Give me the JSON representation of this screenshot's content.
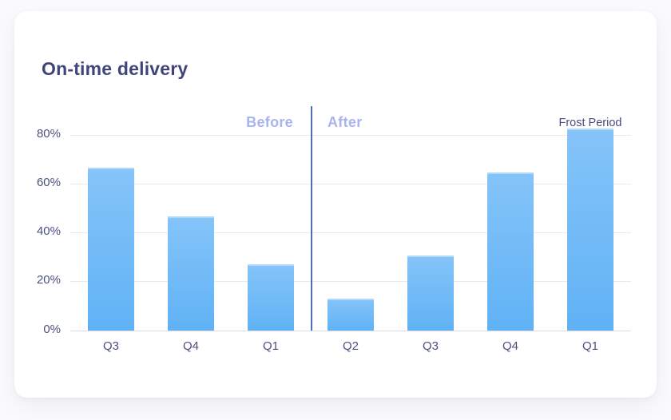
{
  "chart_data": {
    "type": "bar",
    "title": "On-time delivery",
    "categories": [
      "Q3",
      "Q4",
      "Q1",
      "Q2",
      "Q3",
      "Q4",
      "Q1"
    ],
    "values": [
      66.5,
      46.5,
      27,
      13,
      30.5,
      64.5,
      82.5
    ],
    "unit": "%",
    "xlabel": "",
    "ylabel": "",
    "ylim": [
      0,
      90
    ],
    "yticks": [
      0,
      20,
      40,
      60,
      80
    ],
    "ytick_labels": [
      "0%",
      "20%",
      "40%",
      "60%",
      "80%"
    ],
    "grid": "horizontal",
    "legend": "none",
    "sections": [
      {
        "label": "Before",
        "categories": [
          "Q3",
          "Q4",
          "Q1"
        ],
        "values": [
          66.5,
          46.5,
          27
        ]
      },
      {
        "label": "After",
        "categories": [
          "Q2",
          "Q3",
          "Q4",
          "Q1"
        ],
        "values": [
          13,
          30.5,
          64.5,
          82.5
        ]
      }
    ],
    "annotations": {
      "before_label": "Before",
      "after_label": "After",
      "frost_label": "Frost Period",
      "frost_target_category_index": 6,
      "divider_after_index": 2
    },
    "colors": {
      "bar_gradient_top": "#85c4f9",
      "bar_gradient_bottom": "#60b2f5",
      "divider": "#4a6ad9",
      "section_label": "#a9b4ef",
      "title_text": "#3f447a",
      "axis_text": "#4b5080",
      "annotation_text": "#474c7e",
      "gridline": "#e9eaf1",
      "baseline": "#dcdde6",
      "card_bg": "#ffffff",
      "page_bg": "#fbfbfd"
    }
  }
}
